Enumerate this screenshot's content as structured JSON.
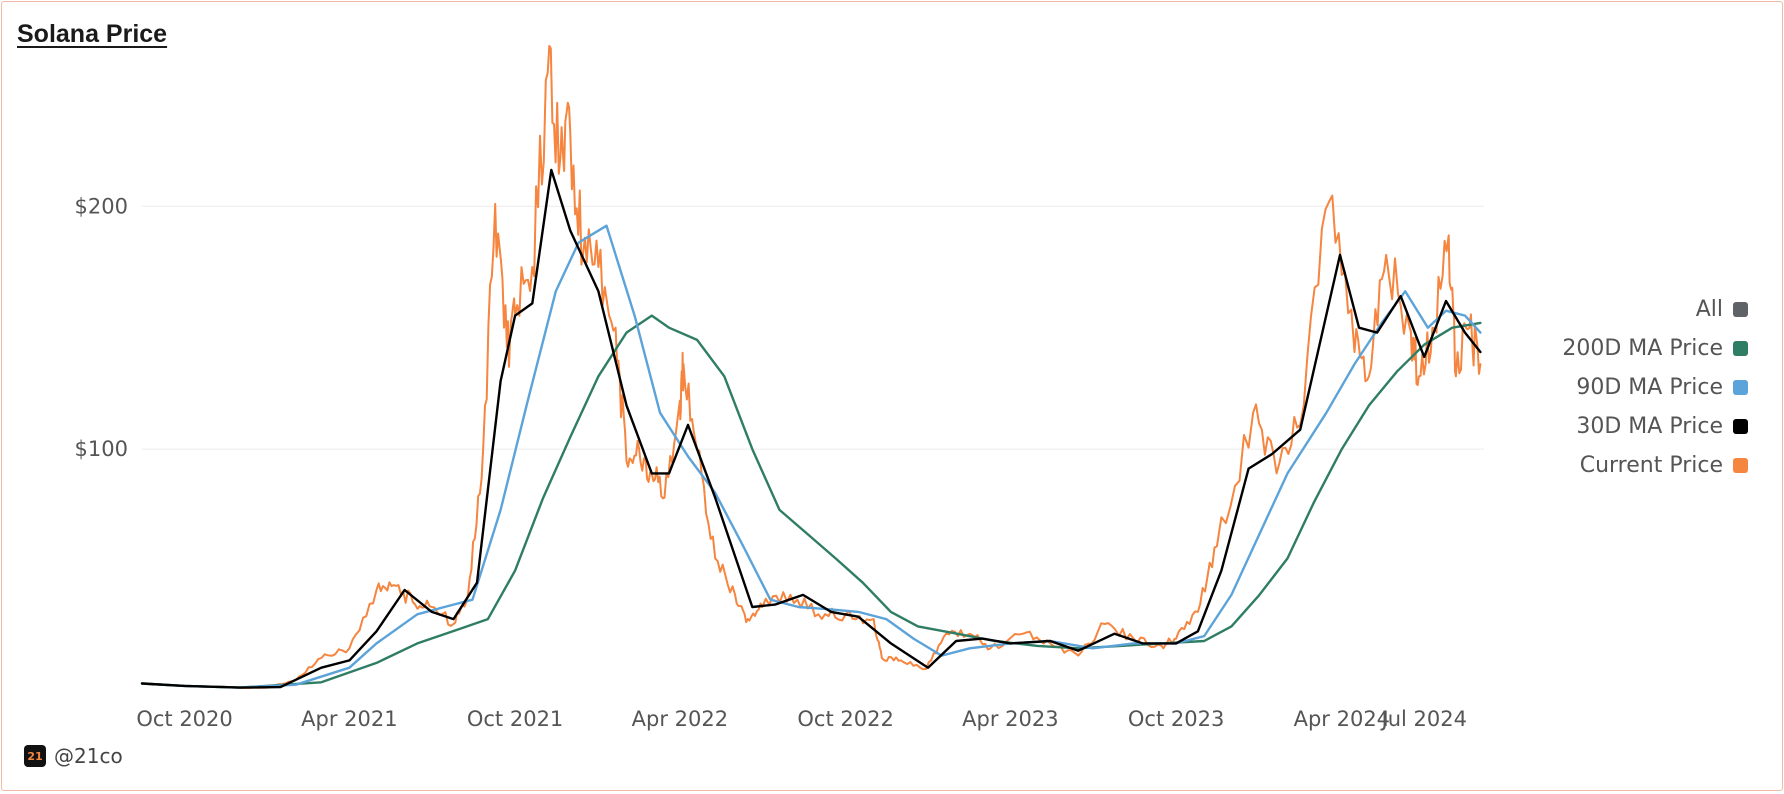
{
  "title": "Solana Price",
  "footer": {
    "logo_text": "21",
    "handle": "@21co"
  },
  "legend": [
    {
      "label": "All",
      "color": "#5f6368"
    },
    {
      "label": "200D MA Price",
      "color": "#2e7d64"
    },
    {
      "label": "90D MA Price",
      "color": "#5ba3d9"
    },
    {
      "label": "30D MA Price",
      "color": "#000000"
    },
    {
      "label": "Current Price",
      "color": "#f5853f"
    }
  ],
  "chart_data": {
    "type": "line",
    "title": "Solana Price",
    "xlabel": "",
    "ylabel": "",
    "x_range": [
      "2020-08-15",
      "2024-09-05"
    ],
    "ylim": [
      0,
      245
    ],
    "y_ticks": [
      100,
      200
    ],
    "y_tick_labels": [
      "$100",
      "$200"
    ],
    "x_ticks": [
      "2020-10-01",
      "2021-04-01",
      "2021-10-01",
      "2022-04-01",
      "2022-10-01",
      "2023-04-01",
      "2023-10-01",
      "2024-04-01",
      "2024-07-01"
    ],
    "x_tick_labels": [
      "Oct 2020",
      "Apr 2021",
      "Oct 2021",
      "Apr 2022",
      "Oct 2022",
      "Apr 2023",
      "Oct 2023",
      "Apr 2024",
      "Jul 2024"
    ],
    "grid": "horizontal",
    "legend_position": "right",
    "series": [
      {
        "name": "Current Price",
        "color": "#f5853f",
        "points": [
          [
            "2020-08-15",
            3.5
          ],
          [
            "2020-10-01",
            2.5
          ],
          [
            "2020-12-01",
            1.8
          ],
          [
            "2021-01-01",
            1.8
          ],
          [
            "2021-02-01",
            5
          ],
          [
            "2021-03-01",
            14
          ],
          [
            "2021-04-01",
            18
          ],
          [
            "2021-05-01",
            42
          ],
          [
            "2021-05-20",
            44
          ],
          [
            "2021-06-10",
            37
          ],
          [
            "2021-07-01",
            35
          ],
          [
            "2021-07-25",
            28
          ],
          [
            "2021-08-10",
            40
          ],
          [
            "2021-08-25",
            88
          ],
          [
            "2021-09-09",
            201
          ],
          [
            "2021-09-22",
            142
          ],
          [
            "2021-10-01",
            155
          ],
          [
            "2021-10-20",
            175
          ],
          [
            "2021-11-06",
            255
          ],
          [
            "2021-11-20",
            220
          ],
          [
            "2021-12-01",
            230
          ],
          [
            "2021-12-15",
            180
          ],
          [
            "2022-01-01",
            175
          ],
          [
            "2022-01-20",
            150
          ],
          [
            "2022-02-01",
            95
          ],
          [
            "2022-02-15",
            100
          ],
          [
            "2022-03-01",
            90
          ],
          [
            "2022-03-15",
            80
          ],
          [
            "2022-04-01",
            120
          ],
          [
            "2022-04-05",
            135
          ],
          [
            "2022-04-20",
            100
          ],
          [
            "2022-05-10",
            55
          ],
          [
            "2022-06-01",
            40
          ],
          [
            "2022-06-15",
            30
          ],
          [
            "2022-07-01",
            35
          ],
          [
            "2022-08-01",
            40
          ],
          [
            "2022-09-01",
            32
          ],
          [
            "2022-10-01",
            32
          ],
          [
            "2022-11-01",
            30
          ],
          [
            "2022-11-10",
            14
          ],
          [
            "2022-12-01",
            13
          ],
          [
            "2022-12-29",
            9.5
          ],
          [
            "2023-01-20",
            24
          ],
          [
            "2023-02-15",
            24
          ],
          [
            "2023-03-10",
            18
          ],
          [
            "2023-04-15",
            24
          ],
          [
            "2023-05-15",
            20
          ],
          [
            "2023-06-15",
            15
          ],
          [
            "2023-07-14",
            28
          ],
          [
            "2023-08-15",
            22
          ],
          [
            "2023-09-15",
            19
          ],
          [
            "2023-10-01",
            22
          ],
          [
            "2023-10-25",
            33
          ],
          [
            "2023-11-15",
            60
          ],
          [
            "2023-12-25",
            115
          ],
          [
            "2024-01-20",
            90
          ],
          [
            "2024-02-15",
            110
          ],
          [
            "2024-03-18",
            202
          ],
          [
            "2024-04-15",
            140
          ],
          [
            "2024-05-01",
            130
          ],
          [
            "2024-05-20",
            180
          ],
          [
            "2024-06-15",
            150
          ],
          [
            "2024-06-25",
            130
          ],
          [
            "2024-07-10",
            150
          ],
          [
            "2024-07-28",
            188
          ],
          [
            "2024-08-05",
            130
          ],
          [
            "2024-08-20",
            150
          ],
          [
            "2024-09-01",
            135
          ]
        ]
      },
      {
        "name": "30D MA Price",
        "color": "#000000",
        "points": [
          [
            "2020-08-15",
            3.5
          ],
          [
            "2020-10-01",
            2.5
          ],
          [
            "2020-12-01",
            1.8
          ],
          [
            "2021-01-15",
            2
          ],
          [
            "2021-03-01",
            10
          ],
          [
            "2021-04-01",
            13
          ],
          [
            "2021-05-01",
            25
          ],
          [
            "2021-06-01",
            42
          ],
          [
            "2021-07-01",
            33
          ],
          [
            "2021-07-25",
            30
          ],
          [
            "2021-08-20",
            45
          ],
          [
            "2021-09-15",
            128
          ],
          [
            "2021-10-01",
            155
          ],
          [
            "2021-10-20",
            160
          ],
          [
            "2021-11-10",
            215
          ],
          [
            "2021-12-01",
            190
          ],
          [
            "2022-01-01",
            165
          ],
          [
            "2022-02-01",
            118
          ],
          [
            "2022-03-01",
            90
          ],
          [
            "2022-03-20",
            90
          ],
          [
            "2022-04-10",
            110
          ],
          [
            "2022-05-10",
            80
          ],
          [
            "2022-06-20",
            35
          ],
          [
            "2022-07-15",
            36
          ],
          [
            "2022-08-15",
            40
          ],
          [
            "2022-09-15",
            33
          ],
          [
            "2022-10-15",
            31
          ],
          [
            "2022-11-20",
            20
          ],
          [
            "2022-12-31",
            10
          ],
          [
            "2023-01-31",
            21
          ],
          [
            "2023-03-01",
            22
          ],
          [
            "2023-04-01",
            20
          ],
          [
            "2023-05-15",
            21
          ],
          [
            "2023-06-15",
            17
          ],
          [
            "2023-07-25",
            24
          ],
          [
            "2023-08-25",
            20
          ],
          [
            "2023-10-01",
            20
          ],
          [
            "2023-10-25",
            25
          ],
          [
            "2023-11-20",
            50
          ],
          [
            "2023-12-20",
            92
          ],
          [
            "2024-01-15",
            98
          ],
          [
            "2024-02-15",
            108
          ],
          [
            "2024-03-30",
            180
          ],
          [
            "2024-04-20",
            150
          ],
          [
            "2024-05-10",
            148
          ],
          [
            "2024-06-05",
            163
          ],
          [
            "2024-07-01",
            138
          ],
          [
            "2024-07-25",
            161
          ],
          [
            "2024-08-15",
            148
          ],
          [
            "2024-09-01",
            140
          ]
        ]
      },
      {
        "name": "90D MA Price",
        "color": "#5ba3d9",
        "points": [
          [
            "2020-08-15",
            3.5
          ],
          [
            "2020-10-01",
            2.5
          ],
          [
            "2020-12-01",
            1.8
          ],
          [
            "2021-02-01",
            3
          ],
          [
            "2021-04-01",
            10
          ],
          [
            "2021-05-01",
            20
          ],
          [
            "2021-06-15",
            32
          ],
          [
            "2021-07-15",
            35
          ],
          [
            "2021-08-15",
            38
          ],
          [
            "2021-09-15",
            75
          ],
          [
            "2021-10-15",
            120
          ],
          [
            "2021-11-15",
            165
          ],
          [
            "2021-12-10",
            185
          ],
          [
            "2022-01-10",
            192
          ],
          [
            "2022-02-10",
            155
          ],
          [
            "2022-03-10",
            115
          ],
          [
            "2022-04-10",
            97
          ],
          [
            "2022-05-10",
            82
          ],
          [
            "2022-06-10",
            60
          ],
          [
            "2022-07-10",
            38
          ],
          [
            "2022-08-10",
            35
          ],
          [
            "2022-09-15",
            34
          ],
          [
            "2022-10-15",
            33
          ],
          [
            "2022-11-15",
            30
          ],
          [
            "2022-12-15",
            22
          ],
          [
            "2023-01-15",
            15
          ],
          [
            "2023-02-15",
            18
          ],
          [
            "2023-04-01",
            20
          ],
          [
            "2023-05-15",
            21
          ],
          [
            "2023-07-01",
            18
          ],
          [
            "2023-08-15",
            20
          ],
          [
            "2023-10-01",
            20
          ],
          [
            "2023-11-01",
            23
          ],
          [
            "2023-12-01",
            40
          ],
          [
            "2024-01-01",
            65
          ],
          [
            "2024-02-01",
            90
          ],
          [
            "2024-03-15",
            115
          ],
          [
            "2024-04-15",
            135
          ],
          [
            "2024-05-15",
            152
          ],
          [
            "2024-06-10",
            165
          ],
          [
            "2024-07-05",
            150
          ],
          [
            "2024-07-25",
            157
          ],
          [
            "2024-08-15",
            155
          ],
          [
            "2024-09-01",
            148
          ]
        ]
      },
      {
        "name": "200D MA Price",
        "color": "#2e7d64",
        "points": [
          [
            "2020-08-15",
            3.5
          ],
          [
            "2020-10-01",
            2.5
          ],
          [
            "2020-12-01",
            1.8
          ],
          [
            "2021-03-01",
            4
          ],
          [
            "2021-05-01",
            12
          ],
          [
            "2021-06-15",
            20
          ],
          [
            "2021-08-01",
            26
          ],
          [
            "2021-09-01",
            30
          ],
          [
            "2021-10-01",
            50
          ],
          [
            "2021-11-01",
            80
          ],
          [
            "2021-12-01",
            105
          ],
          [
            "2022-01-01",
            130
          ],
          [
            "2022-02-01",
            148
          ],
          [
            "2022-03-01",
            155
          ],
          [
            "2022-03-20",
            150
          ],
          [
            "2022-04-20",
            145
          ],
          [
            "2022-05-20",
            130
          ],
          [
            "2022-06-20",
            100
          ],
          [
            "2022-07-20",
            75
          ],
          [
            "2022-08-20",
            65
          ],
          [
            "2022-09-20",
            55
          ],
          [
            "2022-10-20",
            45
          ],
          [
            "2022-11-20",
            33
          ],
          [
            "2022-12-20",
            27
          ],
          [
            "2023-02-01",
            24
          ],
          [
            "2023-03-15",
            21
          ],
          [
            "2023-05-01",
            19
          ],
          [
            "2023-06-15",
            18
          ],
          [
            "2023-08-01",
            19
          ],
          [
            "2023-09-15",
            20
          ],
          [
            "2023-11-01",
            21
          ],
          [
            "2023-12-01",
            27
          ],
          [
            "2024-01-01",
            40
          ],
          [
            "2024-02-01",
            55
          ],
          [
            "2024-03-01",
            78
          ],
          [
            "2024-04-01",
            100
          ],
          [
            "2024-05-01",
            118
          ],
          [
            "2024-06-01",
            132
          ],
          [
            "2024-07-01",
            143
          ],
          [
            "2024-08-01",
            150
          ],
          [
            "2024-09-01",
            152
          ]
        ]
      }
    ]
  }
}
